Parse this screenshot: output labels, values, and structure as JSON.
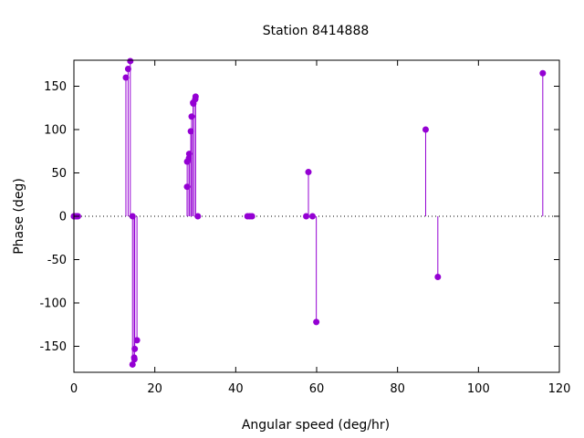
{
  "chart_data": {
    "type": "scatter",
    "style": "impulses-with-points",
    "title": "Station 8414888",
    "xlabel": "Angular speed (deg/hr)",
    "ylabel": "Phase (deg)",
    "xlim": [
      0,
      120
    ],
    "ylim": [
      -180,
      180
    ],
    "xticks": [
      0,
      20,
      40,
      60,
      80,
      100,
      120
    ],
    "yticks": [
      -150,
      -100,
      -50,
      0,
      50,
      100,
      150
    ],
    "grid": false,
    "zero_line": "dotted",
    "color": "#9400D3",
    "series": [
      {
        "points": [
          [
            0.0,
            0
          ],
          [
            0.04,
            0
          ],
          [
            0.08,
            0
          ],
          [
            0.5,
            0
          ],
          [
            0.8,
            0
          ],
          [
            1.0,
            0
          ],
          [
            12.85,
            160
          ],
          [
            13.4,
            170
          ],
          [
            13.94,
            179
          ],
          [
            14.5,
            0
          ],
          [
            14.49,
            -171
          ],
          [
            14.9,
            -163
          ],
          [
            14.96,
            -165
          ],
          [
            15.04,
            -153
          ],
          [
            15.59,
            -143
          ],
          [
            27.97,
            34
          ],
          [
            28.0,
            63
          ],
          [
            28.44,
            67
          ],
          [
            28.51,
            72
          ],
          [
            28.9,
            98
          ],
          [
            29.1,
            115
          ],
          [
            29.46,
            131
          ],
          [
            29.53,
            130
          ],
          [
            30.0,
            135
          ],
          [
            30.08,
            138
          ],
          [
            30.63,
            0
          ],
          [
            42.9,
            0
          ],
          [
            43.48,
            0
          ],
          [
            44.03,
            0
          ],
          [
            57.42,
            0
          ],
          [
            57.97,
            51
          ],
          [
            58.98,
            0
          ],
          [
            59.92,
            -122
          ],
          [
            86.95,
            100
          ],
          [
            89.96,
            -70
          ],
          [
            115.9,
            165
          ]
        ]
      }
    ]
  }
}
